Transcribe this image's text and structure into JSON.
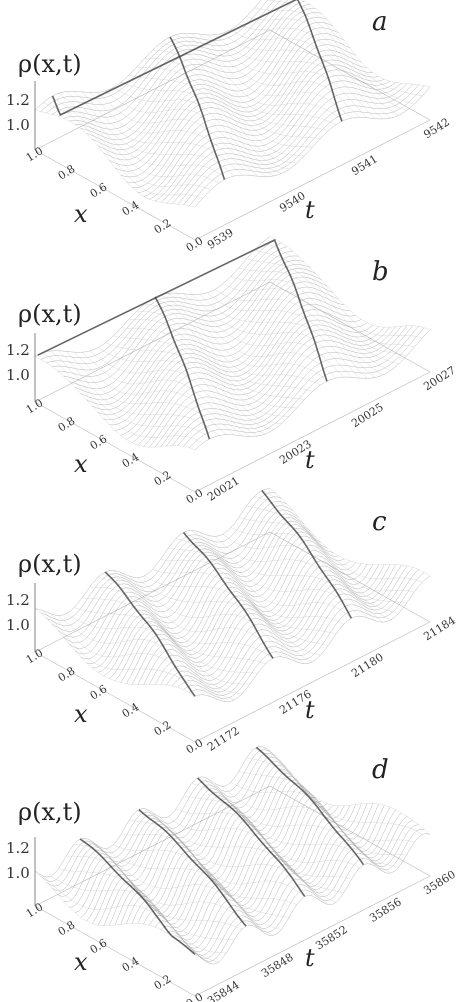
{
  "chart_data": [
    {
      "type": "surface",
      "panel_label": "a",
      "zlabel": "ρ(x,t)",
      "xlabel": "x",
      "tlabel": "t",
      "x_ticks": [
        "1.0",
        "0.8",
        "0.6",
        "0.4",
        "0.2",
        "0.0"
      ],
      "t_ticks": [
        "9539",
        "9540",
        "9541",
        "9542"
      ],
      "z_ticks": [
        "1.2",
        "1.0"
      ],
      "n_ridges": 2
    },
    {
      "type": "surface",
      "panel_label": "b",
      "zlabel": "ρ(x,t)",
      "xlabel": "x",
      "tlabel": "t",
      "x_ticks": [
        "1.0",
        "0.8",
        "0.6",
        "0.4",
        "0.2",
        "0.0"
      ],
      "t_ticks": [
        "20021",
        "20023",
        "20025",
        "20027"
      ],
      "z_ticks": [
        "1.2",
        "1.0"
      ],
      "n_ridges": 2
    },
    {
      "type": "surface",
      "panel_label": "c",
      "zlabel": "ρ(x,t)",
      "xlabel": "x",
      "tlabel": "t",
      "x_ticks": [
        "1.0",
        "0.8",
        "0.6",
        "0.4",
        "0.2",
        "0.0"
      ],
      "t_ticks": [
        "21172",
        "21176",
        "21180",
        "21184"
      ],
      "z_ticks": [
        "1.2",
        "1.0"
      ],
      "n_ridges": 3
    },
    {
      "type": "surface",
      "panel_label": "d",
      "zlabel": "ρ(x,t)",
      "xlabel": "x",
      "tlabel": "t",
      "x_ticks": [
        "1.0",
        "0.8",
        "0.6",
        "0.4",
        "0.2",
        "0.0"
      ],
      "t_ticks": [
        "35844",
        "35848",
        "35852",
        "35856",
        "35860"
      ],
      "z_ticks": [
        "1.2",
        "1.0"
      ],
      "n_ridges": 4
    }
  ]
}
